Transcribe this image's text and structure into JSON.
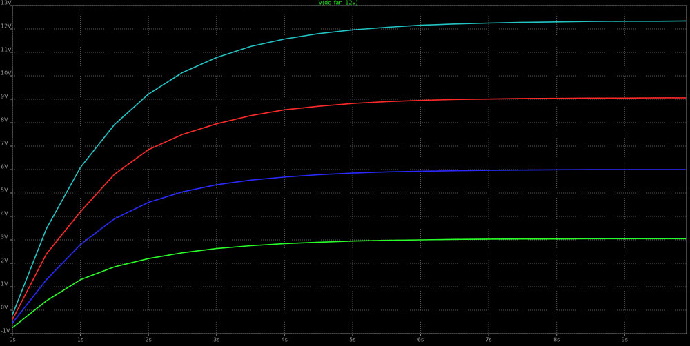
{
  "chart_data": {
    "type": "line",
    "title": "V(dc_fan_12v)",
    "x": [
      0,
      0.5,
      1,
      1.5,
      2,
      2.5,
      3,
      3.5,
      4,
      4.5,
      5,
      5.5,
      6,
      6.5,
      7,
      7.5,
      8,
      8.5,
      9,
      9.5,
      9.9
    ],
    "series": [
      {
        "color": "#22c4c4",
        "values": [
          -0.2,
          3.48,
          6.09,
          7.92,
          9.22,
          10.14,
          10.78,
          11.25,
          11.57,
          11.8,
          11.96,
          12.07,
          12.16,
          12.21,
          12.25,
          12.28,
          12.3,
          12.32,
          12.33,
          12.33,
          12.34
        ]
      },
      {
        "color": "#ff2a2a",
        "values": [
          -0.4,
          2.4,
          4.2,
          5.8,
          6.85,
          7.5,
          7.95,
          8.3,
          8.55,
          8.7,
          8.82,
          8.9,
          8.95,
          8.99,
          9.01,
          9.03,
          9.04,
          9.05,
          9.05,
          9.06,
          9.06
        ]
      },
      {
        "color": "#2a2aff",
        "values": [
          -0.55,
          1.3,
          2.8,
          3.9,
          4.6,
          5.05,
          5.35,
          5.55,
          5.68,
          5.78,
          5.85,
          5.9,
          5.93,
          5.95,
          5.97,
          5.98,
          5.99,
          6.0,
          6.0,
          6.0,
          6.0
        ]
      },
      {
        "color": "#2aff2a",
        "values": [
          -0.75,
          0.4,
          1.3,
          1.85,
          2.2,
          2.45,
          2.63,
          2.75,
          2.84,
          2.9,
          2.95,
          2.98,
          3.0,
          3.02,
          3.03,
          3.04,
          3.04,
          3.05,
          3.05,
          3.05,
          3.05
        ]
      }
    ],
    "xlim": [
      0,
      9.91
    ],
    "ylim": [
      -1,
      13
    ],
    "xticks": [
      {
        "value": 0,
        "label": "0s"
      },
      {
        "value": 1,
        "label": "1s"
      },
      {
        "value": 2,
        "label": "2s"
      },
      {
        "value": 3,
        "label": "3s"
      },
      {
        "value": 4,
        "label": "4s"
      },
      {
        "value": 5,
        "label": "5s"
      },
      {
        "value": 6,
        "label": "6s"
      },
      {
        "value": 7,
        "label": "7s"
      },
      {
        "value": 8,
        "label": "8s"
      },
      {
        "value": 9,
        "label": "9s"
      }
    ],
    "yticks": [
      {
        "value": -1,
        "label": "-1V"
      },
      {
        "value": 0,
        "label": "0V"
      },
      {
        "value": 1,
        "label": "1V"
      },
      {
        "value": 2,
        "label": "2V"
      },
      {
        "value": 3,
        "label": "3V"
      },
      {
        "value": 4,
        "label": "4V"
      },
      {
        "value": 5,
        "label": "5V"
      },
      {
        "value": 6,
        "label": "6V"
      },
      {
        "value": 7,
        "label": "7V"
      },
      {
        "value": 8,
        "label": "8V"
      },
      {
        "value": 9,
        "label": "9V"
      },
      {
        "value": 10,
        "label": "10V"
      },
      {
        "value": 11,
        "label": "11V"
      },
      {
        "value": 12,
        "label": "12V"
      },
      {
        "value": 13,
        "label": "13V"
      }
    ],
    "grid": true,
    "title_color": "#22ee22"
  }
}
